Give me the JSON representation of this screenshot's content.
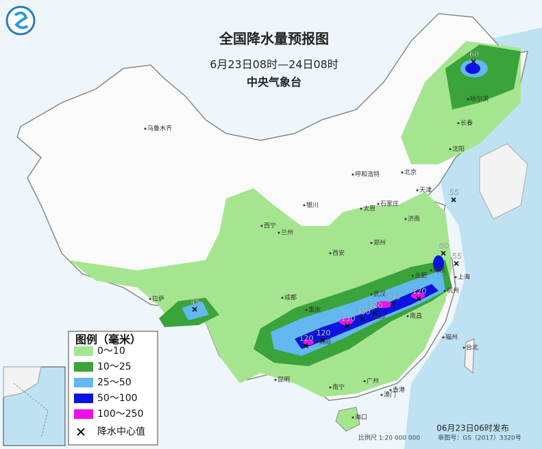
{
  "header": {
    "title": "全国降水量预报图",
    "period": "6月23日08时—24日08时",
    "issuer": "中央气象台"
  },
  "legend": {
    "title": "图例（毫米）",
    "items": [
      {
        "label": "0～10",
        "color": "#a6e58f"
      },
      {
        "label": "10～25",
        "color": "#3aa33a"
      },
      {
        "label": "25～50",
        "color": "#63b8f0"
      },
      {
        "label": "50～100",
        "color": "#0a14e0"
      },
      {
        "label": "100～250",
        "color": "#ee10e6"
      }
    ],
    "center_label": "降水中心值"
  },
  "cities": [
    "乌鲁木齐",
    "哈尔滨",
    "长春",
    "沈阳",
    "北京",
    "天津",
    "呼和浩特",
    "石家庄",
    "太原",
    "济南",
    "银川",
    "西宁",
    "兰州",
    "郑州",
    "西安",
    "合肥",
    "南京",
    "上海",
    "杭州",
    "武汉",
    "成都",
    "重庆",
    "长沙",
    "南昌",
    "福州",
    "台北",
    "拉萨",
    "贵阳",
    "昆明",
    "南宁",
    "广州",
    "香港",
    "澳门",
    "海口"
  ],
  "centers": [
    60,
    55,
    60,
    55,
    45,
    120,
    120,
    130,
    130,
    120,
    110,
    120
  ],
  "footer": {
    "issued": "06月23日06时发布",
    "scale": "比例尺 1:20 000 000",
    "map_no": "审图号：GS（2017）3320号"
  }
}
